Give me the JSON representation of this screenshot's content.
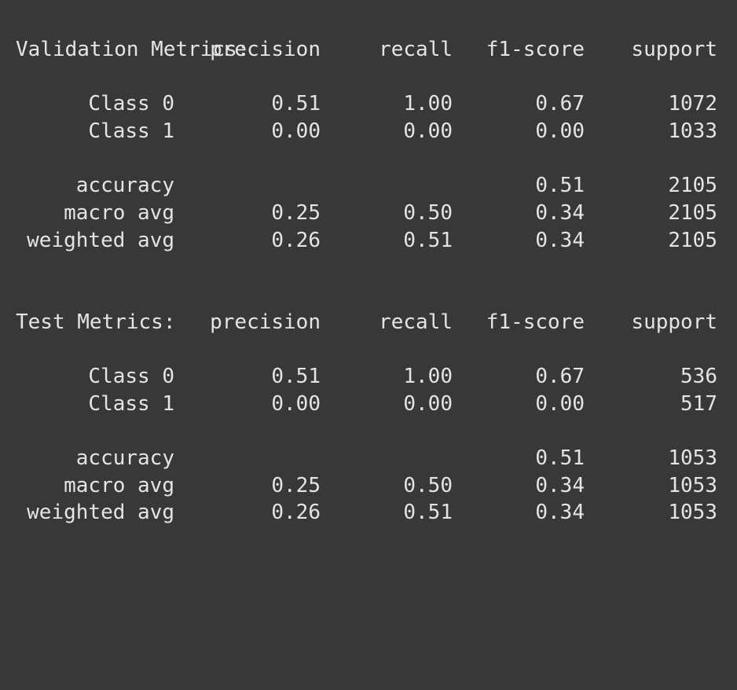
{
  "reports": [
    {
      "title": "Validation Metrics:",
      "headers": [
        "precision",
        "recall",
        "f1-score",
        "support"
      ],
      "rows": [
        {
          "label": "Class 0",
          "precision": "0.51",
          "recall": "1.00",
          "f1": "0.67",
          "support": "1072"
        },
        {
          "label": "Class 1",
          "precision": "0.00",
          "recall": "0.00",
          "f1": "0.00",
          "support": "1033"
        }
      ],
      "summary": [
        {
          "label": "accuracy",
          "precision": "",
          "recall": "",
          "f1": "0.51",
          "support": "2105"
        },
        {
          "label": "macro avg",
          "precision": "0.25",
          "recall": "0.50",
          "f1": "0.34",
          "support": "2105"
        },
        {
          "label": "weighted avg",
          "precision": "0.26",
          "recall": "0.51",
          "f1": "0.34",
          "support": "2105"
        }
      ]
    },
    {
      "title": "Test Metrics:",
      "headers": [
        "precision",
        "recall",
        "f1-score",
        "support"
      ],
      "rows": [
        {
          "label": "Class 0",
          "precision": "0.51",
          "recall": "1.00",
          "f1": "0.67",
          "support": "536"
        },
        {
          "label": "Class 1",
          "precision": "0.00",
          "recall": "0.00",
          "f1": "0.00",
          "support": "517"
        }
      ],
      "summary": [
        {
          "label": "accuracy",
          "precision": "",
          "recall": "",
          "f1": "0.51",
          "support": "1053"
        },
        {
          "label": "macro avg",
          "precision": "0.25",
          "recall": "0.50",
          "f1": "0.34",
          "support": "1053"
        },
        {
          "label": "weighted avg",
          "precision": "0.26",
          "recall": "0.51",
          "f1": "0.34",
          "support": "1053"
        }
      ]
    }
  ]
}
